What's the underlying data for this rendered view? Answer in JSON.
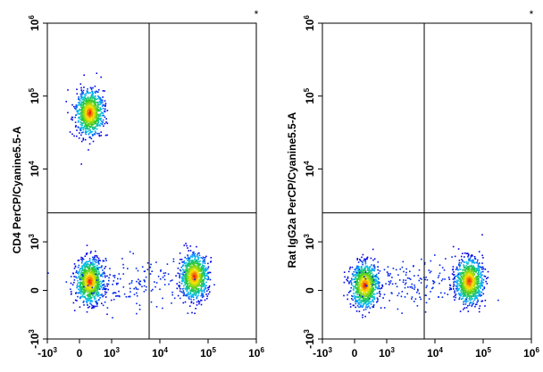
{
  "chart_data": [
    {
      "type": "scatter",
      "subtype": "flow-cytometry-density-dot-plot",
      "ylabel": "CD4 PerCP/Cyanine5.5-A",
      "xlabel": "",
      "x_scale": "biexponential",
      "y_scale": "biexponential",
      "xlim": [
        -1000,
        1000000
      ],
      "ylim": [
        -1000,
        1000000
      ],
      "x_ticks": [
        "-10^3",
        "0",
        "10^3",
        "10^4",
        "10^5",
        "10^6"
      ],
      "y_ticks": [
        "-10^3",
        "0",
        "10^3",
        "10^4",
        "10^5",
        "10^6"
      ],
      "gate": {
        "x": 6000,
        "y": 2500
      },
      "corner_mark": "*",
      "grid": false,
      "populations": [
        {
          "x": 300,
          "y": 60000,
          "density": "high"
        },
        {
          "x": 300,
          "y": 200,
          "density": "high"
        },
        {
          "x": 50000,
          "y": 300,
          "density": "high"
        },
        {
          "x": 3000,
          "y": 150,
          "density": "low"
        }
      ]
    },
    {
      "type": "scatter",
      "subtype": "flow-cytometry-density-dot-plot",
      "ylabel": "Rat IgG2a PerCP/Cyanine5.5-A",
      "xlabel": "",
      "x_scale": "biexponential",
      "y_scale": "biexponential",
      "xlim": [
        -1000,
        1000000
      ],
      "ylim": [
        -1000,
        1000000
      ],
      "x_ticks": [
        "-10^3",
        "0",
        "10^3",
        "10^4",
        "10^5",
        "10^6"
      ],
      "y_ticks": [
        "-10^3",
        "0",
        "10^3",
        "10^4",
        "10^5",
        "10^6"
      ],
      "gate": {
        "x": 6000,
        "y": 2500
      },
      "corner_mark": "*",
      "grid": false,
      "populations": [
        {
          "x": 300,
          "y": 120,
          "density": "high"
        },
        {
          "x": 50000,
          "y": 200,
          "density": "high"
        },
        {
          "x": 3000,
          "y": 150,
          "density": "low"
        }
      ]
    }
  ]
}
